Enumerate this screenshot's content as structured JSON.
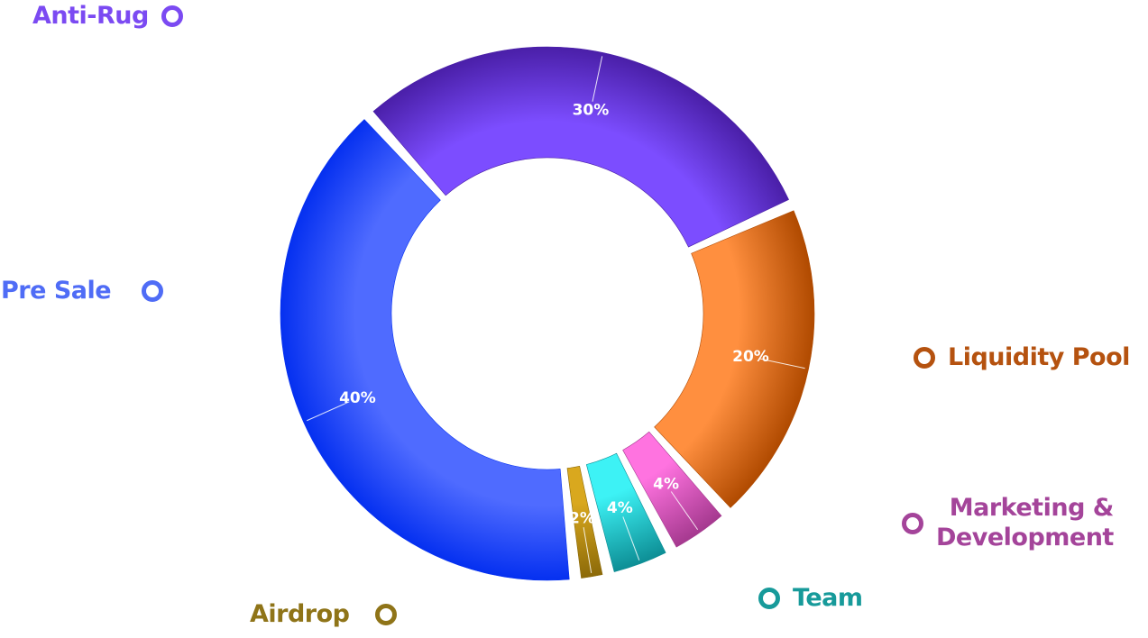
{
  "chart_data": {
    "type": "pie",
    "donut": true,
    "slices": [
      {
        "label": "Anti-Rug",
        "value": 30,
        "value_label": "30%",
        "color": "#7C4DFF",
        "dark": "#4A1FA8"
      },
      {
        "label": "Liquidity Pool",
        "value": 20,
        "value_label": "20%",
        "color": "#FF8F3F",
        "dark": "#B04A00"
      },
      {
        "label": "Marketing & Development",
        "value": 4,
        "value_label": "4%",
        "color": "#FF73E0",
        "dark": "#A5398F"
      },
      {
        "label": "Team",
        "value": 4,
        "value_label": "4%",
        "color": "#3DF2F5",
        "dark": "#0D8E95"
      },
      {
        "label": "Airdrop",
        "value": 2,
        "value_label": "2%",
        "color": "#D9A81E",
        "dark": "#8C6A09"
      },
      {
        "label": "Pre Sale",
        "value": 40,
        "value_label": "40%",
        "color": "#4F6BFF",
        "dark": "#0530F0"
      }
    ],
    "legend": {
      "anti_rug": {
        "label": "Anti-Rug",
        "color": "#7B4AF2"
      },
      "pre_sale": {
        "label": "Pre Sale",
        "color": "#4F6CF6"
      },
      "liquidity_pool": {
        "label": "Liquidity Pool",
        "color": "#B5520F"
      },
      "marketing": {
        "label": "Marketing &\nDevelopment",
        "color": "#A4449A"
      },
      "team": {
        "label": "Team",
        "color": "#179A9A"
      },
      "airdrop": {
        "label": "Airdrop",
        "color": "#8F7418"
      }
    }
  }
}
